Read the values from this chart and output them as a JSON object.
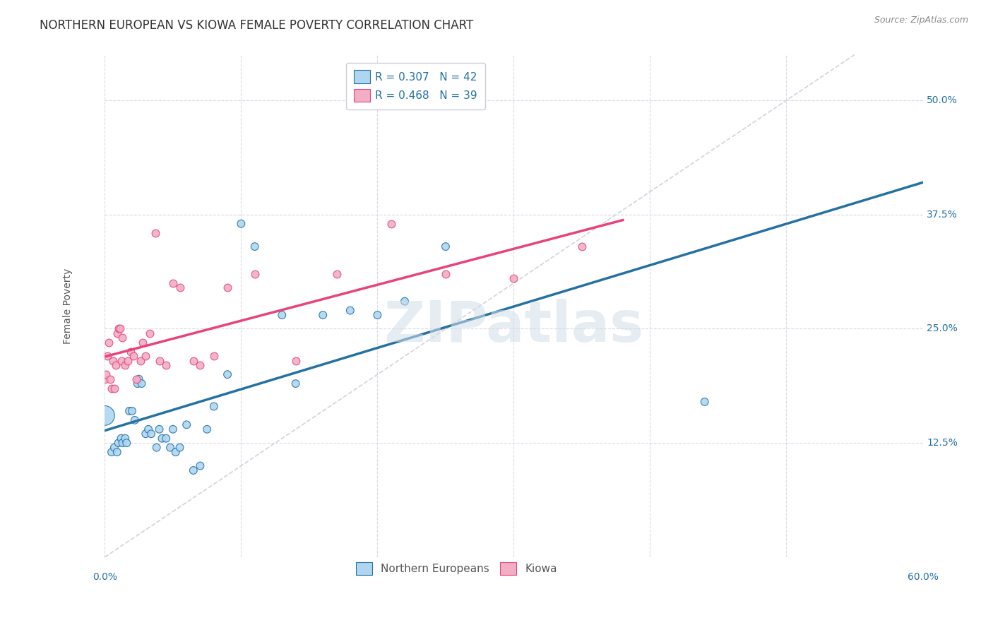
{
  "title": "NORTHERN EUROPEAN VS KIOWA FEMALE POVERTY CORRELATION CHART",
  "source": "Source: ZipAtlas.com",
  "legend_label1": "Northern Europeans",
  "legend_label2": "Kiowa",
  "blue_color": "#aed6f1",
  "pink_color": "#f1aec5",
  "blue_line_color": "#2471a3",
  "pink_line_color": "#e8437a",
  "dashed_line_color": "#c8c8d8",
  "blue_r": 0.307,
  "blue_n": 42,
  "pink_r": 0.468,
  "pink_n": 39,
  "northern_europeans_x": [
    0.0,
    0.005,
    0.007,
    0.009,
    0.01,
    0.012,
    0.013,
    0.015,
    0.016,
    0.018,
    0.02,
    0.022,
    0.024,
    0.025,
    0.027,
    0.03,
    0.032,
    0.034,
    0.038,
    0.04,
    0.042,
    0.045,
    0.048,
    0.05,
    0.052,
    0.055,
    0.06,
    0.065,
    0.07,
    0.075,
    0.08,
    0.09,
    0.1,
    0.11,
    0.13,
    0.14,
    0.16,
    0.18,
    0.2,
    0.22,
    0.25,
    0.44
  ],
  "northern_europeans_y": [
    0.155,
    0.115,
    0.12,
    0.115,
    0.125,
    0.13,
    0.125,
    0.13,
    0.125,
    0.16,
    0.16,
    0.15,
    0.19,
    0.195,
    0.19,
    0.135,
    0.14,
    0.135,
    0.12,
    0.14,
    0.13,
    0.13,
    0.12,
    0.14,
    0.115,
    0.12,
    0.145,
    0.095,
    0.1,
    0.14,
    0.165,
    0.2,
    0.365,
    0.34,
    0.265,
    0.19,
    0.265,
    0.27,
    0.265,
    0.28,
    0.34,
    0.17
  ],
  "northern_europeans_size": [
    400,
    60,
    60,
    60,
    60,
    60,
    60,
    60,
    60,
    60,
    60,
    60,
    60,
    60,
    60,
    60,
    60,
    60,
    60,
    60,
    60,
    60,
    60,
    60,
    60,
    60,
    60,
    60,
    60,
    60,
    60,
    60,
    60,
    60,
    60,
    60,
    60,
    60,
    60,
    60,
    60,
    60
  ],
  "kiowa_x": [
    0.0,
    0.001,
    0.002,
    0.003,
    0.004,
    0.005,
    0.006,
    0.007,
    0.008,
    0.009,
    0.01,
    0.011,
    0.012,
    0.013,
    0.015,
    0.017,
    0.019,
    0.021,
    0.023,
    0.026,
    0.028,
    0.03,
    0.033,
    0.037,
    0.04,
    0.045,
    0.05,
    0.055,
    0.065,
    0.07,
    0.08,
    0.09,
    0.11,
    0.14,
    0.17,
    0.21,
    0.25,
    0.3,
    0.35
  ],
  "kiowa_y": [
    0.195,
    0.2,
    0.22,
    0.235,
    0.195,
    0.185,
    0.215,
    0.185,
    0.21,
    0.245,
    0.25,
    0.25,
    0.215,
    0.24,
    0.21,
    0.215,
    0.225,
    0.22,
    0.195,
    0.215,
    0.235,
    0.22,
    0.245,
    0.355,
    0.215,
    0.21,
    0.3,
    0.295,
    0.215,
    0.21,
    0.22,
    0.295,
    0.31,
    0.215,
    0.31,
    0.365,
    0.31,
    0.305,
    0.34
  ],
  "xlim": [
    0.0,
    0.6
  ],
  "ylim": [
    0.0,
    0.55
  ],
  "xticks_shown": [
    0.0,
    0.6
  ],
  "yticks_shown": [
    0.125,
    0.25,
    0.375,
    0.5
  ],
  "yticks_grid": [
    0.125,
    0.25,
    0.375,
    0.5
  ],
  "xticks_grid": [
    0.0,
    0.1,
    0.2,
    0.3,
    0.4,
    0.5,
    0.6
  ],
  "grid_color": "#d8dae8",
  "background_color": "#ffffff",
  "title_fontsize": 12,
  "axis_label_fontsize": 10,
  "tick_fontsize": 10,
  "legend_fontsize": 11,
  "watermark_text": "ZIPatlas",
  "watermark_color": "#d0dde8"
}
